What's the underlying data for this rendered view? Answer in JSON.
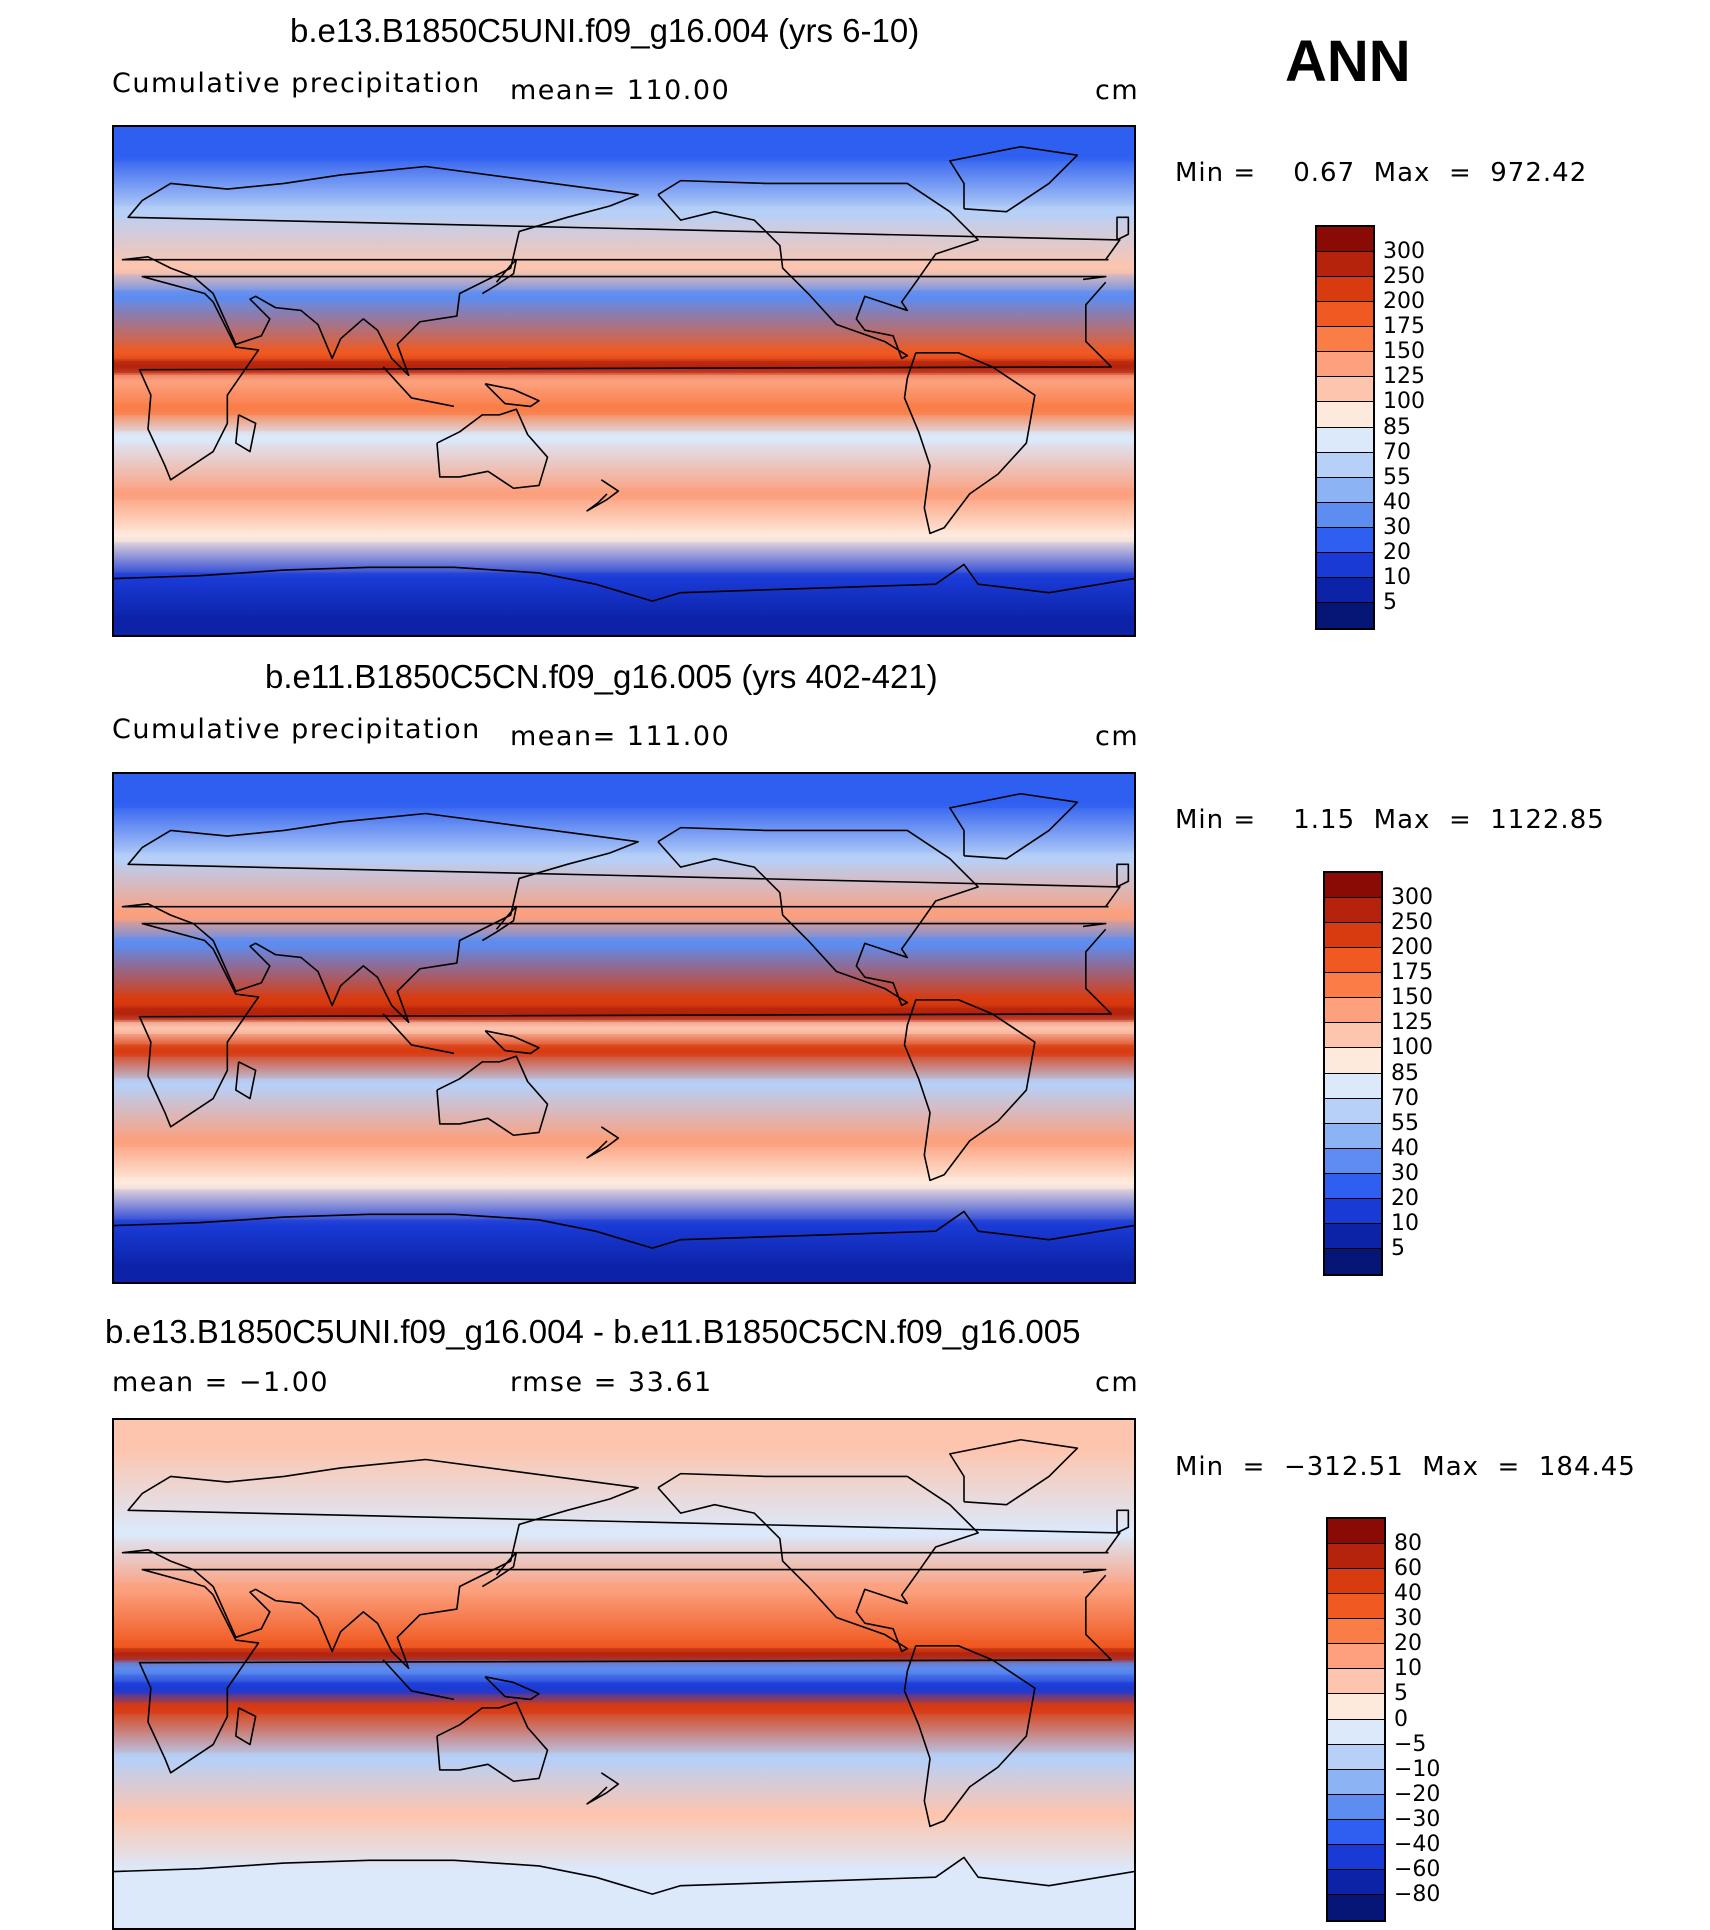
{
  "season": "ANN",
  "panels": [
    {
      "title": "b.e13.B1850C5UNI.f09_g16.004 (yrs 6-10)",
      "variable": "Cumulative precipitation",
      "stat": "mean=  110.00",
      "units": "cm",
      "minmax": "Min =    0.67  Max  =  972.42",
      "colorbar": {
        "labels": [
          "300",
          "250",
          "200",
          "175",
          "150",
          "125",
          "100",
          "85",
          "70",
          "55",
          "40",
          "30",
          "20",
          "10",
          "5"
        ],
        "colors": [
          "#8a0a06",
          "#b5230c",
          "#d93b10",
          "#f05a22",
          "#fa7d48",
          "#fca07e",
          "#fdc5ae",
          "#feeadc",
          "#dbe9fb",
          "#b7d0f7",
          "#8cb3f3",
          "#5d8df0",
          "#2f5ff0",
          "#1a3ad6",
          "#0c23a8",
          "#061676"
        ]
      }
    },
    {
      "title": "b.e11.B1850C5CN.f09_g16.005 (yrs 402-421)",
      "variable": "Cumulative precipitation",
      "stat": "mean=  111.00",
      "units": "cm",
      "minmax": "Min =    1.15  Max  =  1122.85",
      "colorbar": {
        "labels": [
          "300",
          "250",
          "200",
          "175",
          "150",
          "125",
          "100",
          "85",
          "70",
          "55",
          "40",
          "30",
          "20",
          "10",
          "5"
        ],
        "colors": [
          "#8a0a06",
          "#b5230c",
          "#d93b10",
          "#f05a22",
          "#fa7d48",
          "#fca07e",
          "#fdc5ae",
          "#feeadc",
          "#dbe9fb",
          "#b7d0f7",
          "#8cb3f3",
          "#5d8df0",
          "#2f5ff0",
          "#1a3ad6",
          "#0c23a8",
          "#061676"
        ]
      }
    },
    {
      "title": "b.e13.B1850C5UNI.f09_g16.004 - b.e11.B1850C5CN.f09_g16.005",
      "variable": "mean  =   −1.00",
      "stat": "rmse  =    33.61",
      "units": "cm",
      "minmax": "Min  =  −312.51  Max  =  184.45",
      "colorbar": {
        "labels": [
          "80",
          "60",
          "40",
          "30",
          "20",
          "10",
          "5",
          "0",
          "−5",
          "−10",
          "−20",
          "−30",
          "−40",
          "−60",
          "−80"
        ],
        "colors": [
          "#8a0a06",
          "#b5230c",
          "#d93b10",
          "#f05a22",
          "#fa7d48",
          "#fca07e",
          "#fdc5ae",
          "#feeadc",
          "#dbe9fb",
          "#b7d0f7",
          "#8cb3f3",
          "#5d8df0",
          "#2f5ff0",
          "#1a3ad6",
          "#0c23a8",
          "#061676"
        ]
      }
    }
  ],
  "chart_data": [
    {
      "type": "heatmap",
      "title": "b.e13.B1850C5UNI.f09_g16.004 (yrs 6-10)",
      "variable": "Cumulative precipitation",
      "units": "cm",
      "mean": 110.0,
      "min": 0.67,
      "max": 972.42,
      "levels": [
        5,
        10,
        20,
        30,
        40,
        55,
        70,
        85,
        100,
        125,
        150,
        175,
        200,
        250,
        300
      ],
      "bands": [
        {
          "lat": 80,
          "value": 20
        },
        {
          "lat": 60,
          "value": 55
        },
        {
          "lat": 40,
          "value": 100
        },
        {
          "lat": 30,
          "value": 30
        },
        {
          "lat": 10,
          "value": 175
        },
        {
          "lat": 5,
          "value": 250
        },
        {
          "lat": 0,
          "value": 125
        },
        {
          "lat": -10,
          "value": 150
        },
        {
          "lat": -20,
          "value": 70
        },
        {
          "lat": -40,
          "value": 125
        },
        {
          "lat": -55,
          "value": 85
        },
        {
          "lat": -70,
          "value": 10
        },
        {
          "lat": -85,
          "value": 5
        }
      ]
    },
    {
      "type": "heatmap",
      "title": "b.e11.B1850C5CN.f09_g16.005 (yrs 402-421)",
      "variable": "Cumulative precipitation",
      "units": "cm",
      "mean": 111.0,
      "min": 1.15,
      "max": 1122.85,
      "levels": [
        5,
        10,
        20,
        30,
        40,
        55,
        70,
        85,
        100,
        125,
        150,
        175,
        200,
        250,
        300
      ],
      "bands": [
        {
          "lat": 80,
          "value": 20
        },
        {
          "lat": 60,
          "value": 55
        },
        {
          "lat": 40,
          "value": 125
        },
        {
          "lat": 30,
          "value": 30
        },
        {
          "lat": 10,
          "value": 200
        },
        {
          "lat": 5,
          "value": 250
        },
        {
          "lat": 0,
          "value": 100
        },
        {
          "lat": -8,
          "value": 200
        },
        {
          "lat": -20,
          "value": 55
        },
        {
          "lat": -40,
          "value": 125
        },
        {
          "lat": -55,
          "value": 85
        },
        {
          "lat": -70,
          "value": 10
        },
        {
          "lat": -85,
          "value": 5
        }
      ]
    },
    {
      "type": "heatmap",
      "title": "b.e13.B1850C5UNI.f09_g16.004 - b.e11.B1850C5CN.f09_g16.005",
      "units": "cm",
      "mean": -1.0,
      "rmse": 33.61,
      "min": -312.51,
      "max": 184.45,
      "levels": [
        -80,
        -60,
        -40,
        -30,
        -20,
        -10,
        -5,
        0,
        5,
        10,
        20,
        30,
        40,
        60,
        80
      ],
      "bands": [
        {
          "lat": 80,
          "value": 5
        },
        {
          "lat": 50,
          "value": -5
        },
        {
          "lat": 30,
          "value": 10
        },
        {
          "lat": 10,
          "value": 30
        },
        {
          "lat": 7,
          "value": 60
        },
        {
          "lat": 2,
          "value": -30
        },
        {
          "lat": -5,
          "value": -60
        },
        {
          "lat": -12,
          "value": 40
        },
        {
          "lat": -30,
          "value": -10
        },
        {
          "lat": -50,
          "value": 5
        },
        {
          "lat": -70,
          "value": -5
        },
        {
          "lat": -85,
          "value": -5
        }
      ]
    }
  ]
}
